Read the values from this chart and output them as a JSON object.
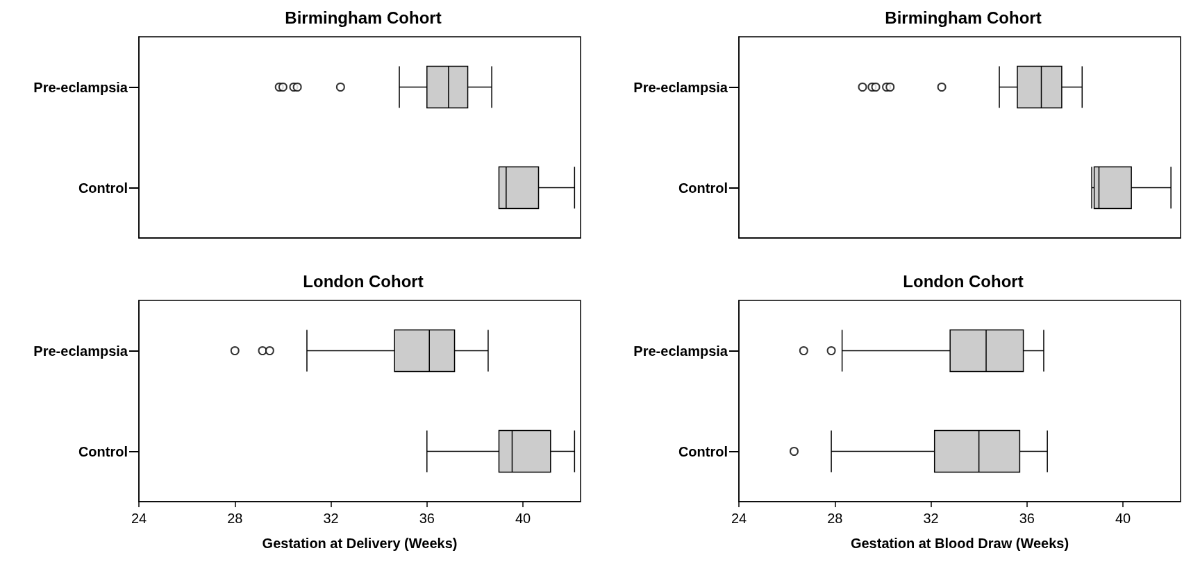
{
  "chart_data": [
    {
      "type": "box",
      "orientation": "horizontal",
      "title": "Birmingham Cohort",
      "categories": [
        "Pre-eclampsia",
        "Control"
      ],
      "xlim": [
        24,
        42.4
      ],
      "tick_labels": "y",
      "grid": false,
      "series": [
        {
          "color": "#cccccc",
          "boxes": [
            {
              "low": 34.85,
              "q1": 36.0,
              "median": 36.9,
              "q3": 37.7,
              "high": 38.7,
              "outliers": [
                29.85,
                30.0,
                30.45,
                30.6,
                32.4
              ]
            },
            {
              "low": 39.0,
              "q1": 39.0,
              "median": 39.3,
              "q3": 40.65,
              "high": 42.15
            }
          ]
        }
      ]
    },
    {
      "type": "box",
      "orientation": "horizontal",
      "title": "Birmingham Cohort",
      "categories": [
        "Pre-eclampsia",
        "Control"
      ],
      "xlim": [
        24,
        42.4
      ],
      "tick_labels": "y",
      "grid": false,
      "series": [
        {
          "color": "#cccccc",
          "boxes": [
            {
              "low": 34.85,
              "q1": 35.6,
              "median": 36.6,
              "q3": 37.45,
              "high": 38.3,
              "outliers": [
                29.15,
                29.55,
                29.7,
                30.15,
                30.3,
                32.45
              ]
            },
            {
              "low": 38.7,
              "q1": 38.8,
              "median": 39.0,
              "q3": 40.35,
              "high": 42.0
            }
          ]
        }
      ]
    },
    {
      "type": "box",
      "orientation": "horizontal",
      "title": "London Cohort",
      "categories": [
        "Pre-eclampsia",
        "Control"
      ],
      "xlim": [
        24,
        42.4
      ],
      "xticks": [
        24,
        28,
        32,
        36,
        40
      ],
      "xlabel": "Gestation at Delivery (Weeks)",
      "grid": false,
      "series": [
        {
          "color": "#cccccc",
          "boxes": [
            {
              "low": 31.0,
              "q1": 34.65,
              "median": 36.1,
              "q3": 37.15,
              "high": 38.55,
              "outliers": [
                28.0,
                29.15,
                29.45
              ]
            },
            {
              "low": 36.0,
              "q1": 39.0,
              "median": 39.55,
              "q3": 41.15,
              "high": 42.15
            }
          ]
        }
      ]
    },
    {
      "type": "box",
      "orientation": "horizontal",
      "title": "London Cohort",
      "categories": [
        "Pre-eclampsia",
        "Control"
      ],
      "xlim": [
        24,
        42.4
      ],
      "xticks": [
        24,
        28,
        32,
        36,
        40
      ],
      "xlabel": "Gestation at Blood Draw (Weeks)",
      "grid": false,
      "series": [
        {
          "color": "#cccccc",
          "boxes": [
            {
              "low": 28.3,
              "q1": 32.8,
              "median": 34.3,
              "q3": 35.85,
              "high": 36.7,
              "outliers": [
                26.7,
                27.85
              ]
            },
            {
              "low": 27.85,
              "q1": 32.15,
              "median": 34.0,
              "q3": 35.7,
              "high": 36.85,
              "outliers": [
                26.3
              ]
            }
          ]
        }
      ]
    }
  ]
}
